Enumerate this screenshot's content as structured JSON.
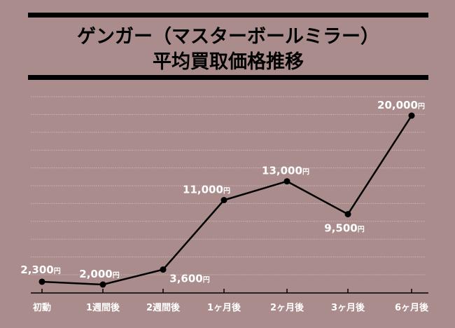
{
  "chart_data": {
    "type": "line",
    "title_line1": "ゲンガー（マスターボールミラー）",
    "title_line2": "平均買取価格推移",
    "categories": [
      "初動",
      "1週間後",
      "2週間後",
      "1ヶ月後",
      "2ヶ月後",
      "3ヶ月後",
      "6ヶ月後"
    ],
    "values": [
      2300,
      2000,
      3600,
      11000,
      13000,
      9500,
      20000
    ],
    "value_labels": [
      "2,300",
      "2,000",
      "3,600",
      "11,000",
      "13,000",
      "9,500",
      "20,000"
    ],
    "value_unit": "円",
    "ylim": [
      0,
      22000
    ],
    "grid": true,
    "colors": {
      "background": "#ab8c8c",
      "line": "#000000",
      "grid": "#cbb8b8",
      "text": "#000000",
      "label_text": "#ffffff"
    }
  }
}
